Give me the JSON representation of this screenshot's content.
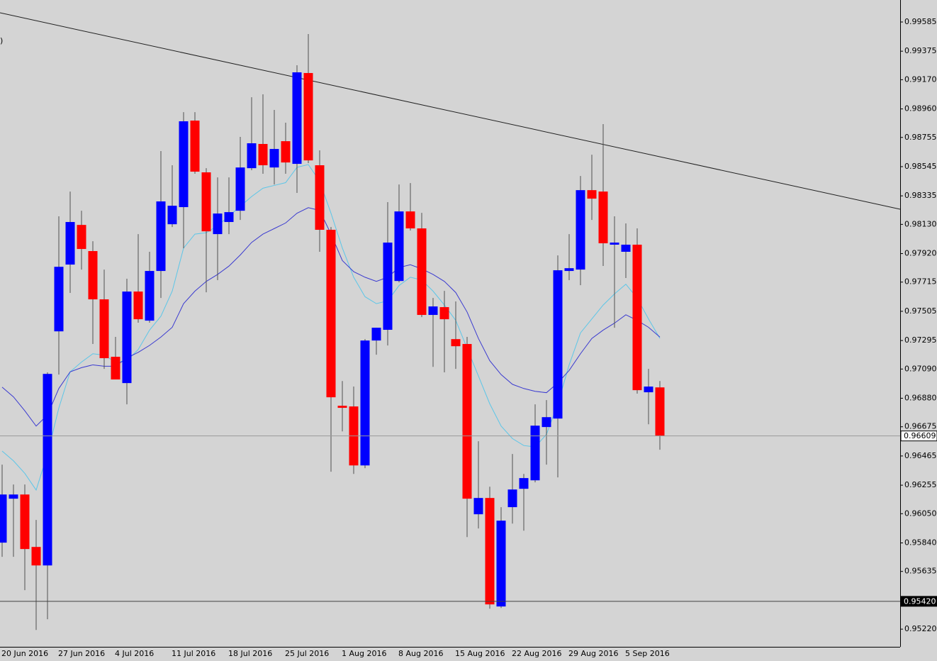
{
  "chart_data": {
    "type": "candlestick",
    "legend_fragment": ")",
    "categories": [
      "20 Jun 2016",
      null,
      null,
      null,
      null,
      "27 Jun 2016",
      null,
      null,
      null,
      null,
      "4 Jul 2016",
      null,
      null,
      null,
      null,
      "11 Jul 2016",
      null,
      null,
      null,
      null,
      "18 Jul 2016",
      null,
      null,
      null,
      null,
      "25 Jul 2016",
      null,
      null,
      null,
      null,
      "1 Aug 2016",
      null,
      null,
      null,
      null,
      "8 Aug 2016",
      null,
      null,
      null,
      null,
      "15 Aug 2016",
      null,
      null,
      null,
      null,
      "22 Aug 2016",
      null,
      null,
      null,
      null,
      "29 Aug 2016",
      null,
      null,
      null,
      null,
      "5 Sep 2016",
      null,
      null,
      null
    ],
    "open": [
      0.95842,
      0.96158,
      0.96188,
      0.95811,
      0.95678,
      0.97361,
      0.97841,
      0.98126,
      0.97938,
      0.97591,
      0.97178,
      0.96989,
      0.97647,
      0.97438,
      0.97795,
      0.98131,
      0.98254,
      0.98876,
      0.98504,
      0.9806,
      0.98147,
      0.98228,
      0.98534,
      0.98708,
      0.98539,
      0.98728,
      0.98565,
      0.99218,
      0.98555,
      0.98091,
      0.96826,
      0.96821,
      0.96397,
      0.97295,
      0.97372,
      0.97723,
      0.98223,
      0.98101,
      0.97479,
      0.97535,
      0.97305,
      0.9727,
      0.96046,
      0.96163,
      0.95383,
      0.96097,
      0.96229,
      0.9629,
      0.96673,
      0.96734,
      0.97795,
      0.97805,
      0.98376,
      0.98366,
      0.97984,
      0.97933,
      0.97984,
      0.96923,
      0.96958
    ],
    "high": [
      0.96403,
      0.9626,
      0.9626,
      0.96005,
      0.97066,
      0.98188,
      0.98366,
      0.98228,
      0.98009,
      0.97805,
      0.97321,
      0.97739,
      0.9806,
      0.97933,
      0.98657,
      0.98555,
      0.98937,
      0.98937,
      0.98534,
      0.98468,
      0.98468,
      0.98759,
      0.99044,
      0.99065,
      0.98953,
      0.98861,
      0.99274,
      0.99498,
      0.98662,
      0.98111,
      0.97004,
      0.96964,
      0.97305,
      0.97387,
      0.9829,
      0.98417,
      0.98427,
      0.98213,
      0.97601,
      0.97652,
      0.97576,
      0.97321,
      0.96571,
      0.96244,
      0.96097,
      0.96479,
      0.96336,
      0.96836,
      0.96867,
      0.97907,
      0.9806,
      0.98478,
      0.98631,
      0.98851,
      0.98188,
      0.98137,
      0.98101,
      0.97091,
      0.97004
    ],
    "low": [
      0.9574,
      0.9574,
      0.955,
      0.95214,
      0.95291,
      0.9705,
      0.97637,
      0.97805,
      0.9727,
      0.97091,
      0.97015,
      0.96836,
      0.97423,
      0.97423,
      0.97601,
      0.98111,
      0.97958,
      0.98494,
      0.97642,
      0.97729,
      0.9806,
      0.98162,
      0.98519,
      0.98494,
      0.98417,
      0.98494,
      0.98356,
      0.9857,
      0.97933,
      0.96352,
      0.96642,
      0.96336,
      0.96377,
      0.97193,
      0.97259,
      0.97713,
      0.98086,
      0.97463,
      0.97106,
      0.97066,
      0.97091,
      0.95882,
      0.95944,
      0.95367,
      0.95372,
      0.95979,
      0.95928,
      0.96275,
      0.96403,
      0.96311,
      0.97729,
      0.97693,
      0.98162,
      0.97831,
      0.97387,
      0.97744,
      0.96913,
      0.96693,
      0.9651
    ],
    "close": [
      0.96188,
      0.96188,
      0.95796,
      0.95678,
      0.97055,
      0.97825,
      0.98147,
      0.97953,
      0.97591,
      0.97168,
      0.97015,
      0.97647,
      0.97448,
      0.97795,
      0.98295,
      0.98264,
      0.98871,
      0.98509,
      0.9808,
      0.98208,
      0.98218,
      0.98539,
      0.98713,
      0.98555,
      0.98672,
      0.98575,
      0.99223,
      0.9859,
      0.98091,
      0.96887,
      0.96811,
      0.96397,
      0.97295,
      0.97387,
      0.97999,
      0.98223,
      0.98101,
      0.97479,
      0.9754,
      0.97448,
      0.97254,
      0.96158,
      0.96163,
      0.95398,
      0.96,
      0.96224,
      0.96306,
      0.96683,
      0.96744,
      0.978,
      0.97815,
      0.98376,
      0.98315,
      0.97994,
      0.97999,
      0.97984,
      0.96938,
      0.96964,
      0.96609
    ],
    "up_color": "#0000ff",
    "down_color": "#ff0000",
    "wick_color": "#505050",
    "overlays": [
      {
        "color": "#5cc6e8",
        "values": [
          0.965,
          0.9643,
          0.9634,
          0.9622,
          0.9648,
          0.9681,
          0.9707,
          0.9714,
          0.972,
          0.9719,
          0.9714,
          0.9715,
          0.9723,
          0.9737,
          0.9747,
          0.9765,
          0.9796,
          0.9806,
          0.9807,
          0.9812,
          0.9819,
          0.9826,
          0.9833,
          0.9839,
          0.9841,
          0.9843,
          0.9854,
          0.9856,
          0.9844,
          0.9821,
          0.9796,
          0.9775,
          0.9761,
          0.9756,
          0.9758,
          0.9769,
          0.9775,
          0.9773,
          0.9765,
          0.9755,
          0.9744,
          0.9724,
          0.9704,
          0.9684,
          0.9668,
          0.9659,
          0.9654,
          0.9653,
          0.9662,
          0.9684,
          0.9712,
          0.9735,
          0.9745,
          0.9755,
          0.9763,
          0.977,
          0.976,
          0.9745,
          0.9731
        ]
      },
      {
        "color": "#3a3ad0",
        "values": [
          0.9696,
          0.9689,
          0.9679,
          0.9668,
          0.9676,
          0.9695,
          0.9707,
          0.971,
          0.9712,
          0.9711,
          0.9711,
          0.9717,
          0.9721,
          0.9726,
          0.9732,
          0.9739,
          0.9756,
          0.9765,
          0.9772,
          0.9777,
          0.9783,
          0.9791,
          0.98,
          0.9806,
          0.981,
          0.9814,
          0.9821,
          0.9825,
          0.9823,
          0.9806,
          0.9787,
          0.9779,
          0.9775,
          0.9772,
          0.9775,
          0.9782,
          0.9784,
          0.9781,
          0.9777,
          0.9772,
          0.9764,
          0.975,
          0.9731,
          0.9715,
          0.9705,
          0.9698,
          0.9695,
          0.9693,
          0.9692,
          0.9699,
          0.9708,
          0.972,
          0.9731,
          0.9737,
          0.9742,
          0.9748,
          0.9744,
          0.9739,
          0.9732
        ]
      }
    ],
    "trendline": {
      "color": "#202020",
      "values": [
        0.99651,
        0.98239
      ]
    },
    "hlines": [
      {
        "value": 0.96609,
        "label": "0.96609",
        "color": "#9a9a9a",
        "box": "#ffffff",
        "text_color": "#000000"
      },
      {
        "value": 0.9542,
        "label": "0.95420",
        "color": "#404040",
        "box": "#000000",
        "text_color": "#ffffff"
      }
    ],
    "ylim": [
      0.95093,
      0.99743
    ],
    "yticks": [
      0.99585,
      0.99375,
      {
        "value": 0.9917,
        "label": "0.99170"
      },
      {
        "value": 0.9896,
        "label": "0.98960"
      },
      0.98755,
      0.98545,
      0.98335,
      {
        "value": 0.9813,
        "label": "0.98130"
      },
      {
        "value": 0.9792,
        "label": "0.97920"
      },
      0.97715,
      0.97505,
      0.97295,
      {
        "value": 0.9709,
        "label": "0.97090"
      },
      {
        "value": 0.9688,
        "label": "0.96880"
      },
      0.96675,
      0.96465,
      0.96255,
      {
        "value": 0.9605,
        "label": "0.96050"
      },
      {
        "value": 0.9584,
        "label": "0.95840"
      },
      0.95635,
      0.95425,
      {
        "value": 0.9522,
        "label": "0.95220"
      }
    ]
  }
}
